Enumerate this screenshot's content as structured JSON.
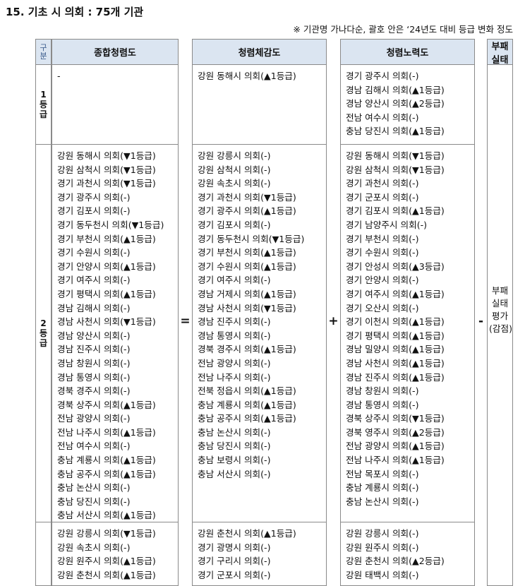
{
  "header": {
    "title": "15. 기초 시 의회 : 75개 기관",
    "note": "※ 기관명 가나다순, 괄호 안은 ‘24년도 대비 등급 변화 정도"
  },
  "table": {
    "headers": [
      "구분",
      "종합청렴도",
      "청렴체감도",
      "청렴노력도",
      "부패 실태"
    ],
    "operators": [
      "=",
      "+",
      "-"
    ],
    "corruption_note": "부패 실태 평가 (감점)",
    "rows": [
      {
        "grade": "1등급",
        "cells": [
          [
            "-"
          ],
          [
            "강원 동해시 의회(▲1등급)"
          ],
          [
            "경기 광주시 의회(-)",
            "경남 김해시 의회(▲1등급)",
            "경남 양산시 의회(▲2등급)",
            "전남 여수시 의회(-)",
            "충남 당진시 의회(▲1등급)"
          ]
        ]
      },
      {
        "grade": "2등급",
        "cells": [
          [
            "강원 동해시 의회(▼1등급)",
            "강원 삼척시 의회(▼1등급)",
            "경기 과천시 의회(▼1등급)",
            "경기 광주시 의회(-)",
            "경기 김포시 의회(-)",
            "경기 동두천시 의회(▼1등급)",
            "경기 부천시 의회(▲1등급)",
            "경기 수원시 의회(-)",
            "경기 안양시 의회(▲1등급)",
            "경기 여주시 의회(-)",
            "경기 평택시 의회(▲1등급)",
            "경남 김해시 의회(-)",
            "경남 사천시 의회(▼1등급)",
            "경남 양산시 의회(-)",
            "경남 진주시 의회(-)",
            "경남 창원시 의회(-)",
            "경남 통영시 의회(-)",
            "경북 경주시 의회(-)",
            "경북 상주시 의회(▲1등급)",
            "전남 광양시 의회(-)",
            "전남 나주시 의회(▲1등급)",
            "전남 여수시 의회(-)",
            "충남 계룡시 의회(▲1등급)",
            "충남 공주시 의회(▲1등급)",
            "충남 논산시 의회(-)",
            "충남 당진시 의회(-)",
            "충남 서산시 의회(▲1등급)"
          ],
          [
            "강원 강릉시 의회(-)",
            "강원 삼척시 의회(-)",
            "강원 속초시 의회(-)",
            "경기 과천시 의회(▼1등급)",
            "경기 광주시 의회(▲1등급)",
            "경기 김포시 의회(-)",
            "경기 동두천시 의회(▼1등급)",
            "경기 부천시 의회(▲1등급)",
            "경기 수원시 의회(▲1등급)",
            "경기 여주시 의회(-)",
            "경남 거제시 의회(▲1등급)",
            "경남 사천시 의회(▼1등급)",
            "경남 진주시 의회(-)",
            "경남 통영시 의회(-)",
            "경북 경주시 의회(▲1등급)",
            "전남 광양시 의회(-)",
            "전남 나주시 의회(-)",
            "전북 정읍시 의회(▲1등급)",
            "충남 계룡시 의회(▲1등급)",
            "충남 공주시 의회(▲1등급)",
            "충남 논산시 의회(-)",
            "충남 당진시 의회(-)",
            "충남 보령시 의회(-)",
            "충남 서산시 의회(-)"
          ],
          [
            "강원 동해시 의회(▼1등급)",
            "강원 삼척시 의회(▼1등급)",
            "경기 과천시 의회(-)",
            "경기 군포시 의회(-)",
            "경기 김포시 의회(▲1등급)",
            "경기 남양주시 의회(-)",
            "경기 부천시 의회(-)",
            "경기 수원시 의회(-)",
            "경기 안성시 의회(▲3등급)",
            "경기 안양시 의회(-)",
            "경기 여주시 의회(▲1등급)",
            "경기 오산시 의회(-)",
            "경기 이천시 의회(▲1등급)",
            "경기 평택시 의회(▲1등급)",
            "경남 밀양시 의회(▲1등급)",
            "경남 사천시 의회(▲1등급)",
            "경남 진주시 의회(▲1등급)",
            "경남 창원시 의회(-)",
            "경남 통영시 의회(-)",
            "경북 상주시 의회(▼1등급)",
            "경북 영주시 의회(▲2등급)",
            "전남 광양시 의회(▲1등급)",
            "전남 나주시 의회(▲1등급)",
            "전남 목포시 의회(-)",
            "충남 계룡시 의회(-)",
            "충남 논산시 의회(-)"
          ]
        ]
      },
      {
        "cells": [
          [
            "강원 강릉시 의회(▼1등급)",
            "강원 속초시 의회(-)",
            "강원 원주시 의회(▲1등급)",
            "강원 춘천시 의회(▲1등급)"
          ],
          [
            "강원 춘천시 의회(▲1등급)",
            "경기 광명시 의회(-)",
            "경기 구리시 의회(-)",
            "경기 군포시 의회(-)"
          ],
          [
            "강원 강릉시 의회(-)",
            "강원 원주시 의회(-)",
            "강원 춘천시 의회(▲2등급)",
            "강원 태백시 의회(-)"
          ]
        ]
      }
    ]
  }
}
